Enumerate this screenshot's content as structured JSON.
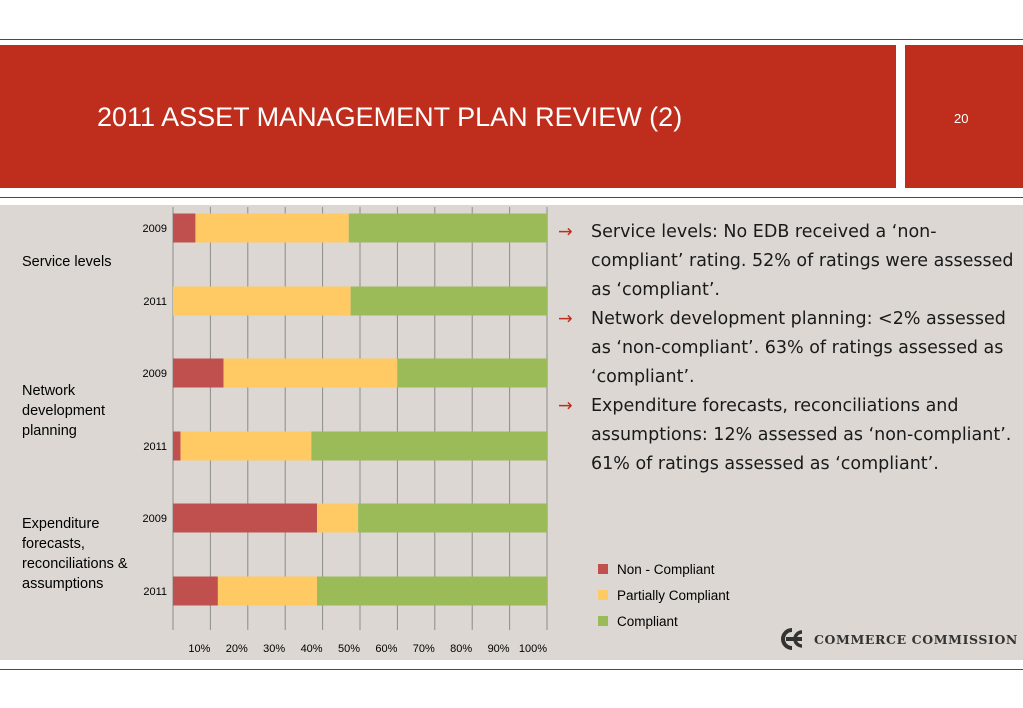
{
  "header": {
    "title": "2011 ASSET MANAGEMENT PLAN REVIEW (2)",
    "page_number": "20"
  },
  "groups": [
    {
      "label": "Service levels"
    },
    {
      "label": "Network development planning"
    },
    {
      "label": "Expenditure forecasts, reconciliations & assumptions"
    }
  ],
  "bullets": [
    {
      "text": "Service levels: No EDB received a ‘non-compliant’ rating. 52% of ratings were assessed as ‘compliant’."
    },
    {
      "text": "Network development planning: <2% assessed as ‘non-compliant’.  63% of ratings assessed as ‘compliant’."
    },
    {
      "text": "Expenditure forecasts, reconciliations and assumptions: 12% assessed as ‘non-compliant’.  61% of ratings assessed as ‘compliant’."
    }
  ],
  "arrow_glyph": "→",
  "logo": {
    "text": "COMMERCE COMMISSION",
    "icon": "commerce-commission-logo-icon"
  },
  "colors": {
    "header_red": "#bf2e1c",
    "non_compliant": "#c0504d",
    "partially_compliant": "#ffc964",
    "compliant": "#9bbb59"
  },
  "chart_data": {
    "type": "bar",
    "orientation": "horizontal",
    "stacked": "percent",
    "categories": [
      "2009",
      "2011",
      "2009",
      "2011",
      "2009",
      "2011"
    ],
    "series": [
      {
        "name": "Non - Compliant",
        "values": [
          6,
          0,
          13.5,
          2,
          38.5,
          12
        ]
      },
      {
        "name": "Partially Compliant",
        "values": [
          41,
          47.5,
          46.5,
          35,
          11,
          26.5
        ]
      },
      {
        "name": "Compliant",
        "values": [
          53,
          52.5,
          40,
          63,
          50.5,
          61.5
        ]
      }
    ],
    "x_ticks": [
      "10%",
      "20%",
      "30%",
      "40%",
      "50%",
      "60%",
      "70%",
      "80%",
      "90%",
      "100%"
    ],
    "xlim": [
      0,
      100
    ],
    "grid": true,
    "legend_position": "right"
  }
}
